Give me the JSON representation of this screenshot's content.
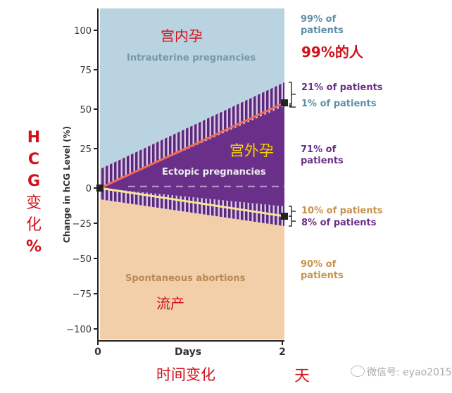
{
  "chart_data": {
    "type": "area",
    "xlabel": "Days",
    "ylabel": "Change in hCG Level (%)",
    "xlim": [
      0,
      2
    ],
    "ylim": [
      -107,
      115
    ],
    "x_ticks": [
      "0",
      "2"
    ],
    "y_ticks": [
      "100",
      "75",
      "50",
      "25",
      "0",
      "−25",
      "−50",
      "−75",
      "−100"
    ],
    "regions": [
      {
        "name": "Intrauterine pregnancies",
        "color": "#b9d3e0"
      },
      {
        "name": "Ectopic pregnancies",
        "color": "#6a3089"
      },
      {
        "name": "Spontaneous abortions",
        "color": "#f3cfa9"
      }
    ],
    "bands": {
      "upper": {
        "day0": [
          0,
          12
        ],
        "day2": [
          52,
          67
        ]
      },
      "lower": {
        "day0": [
          -8,
          0
        ],
        "day2": [
          -27,
          -13
        ]
      }
    },
    "lines": [
      {
        "color": "#f06a5a",
        "x": [
          0,
          2
        ],
        "y": [
          0,
          54
        ]
      },
      {
        "color": "#f6e59a",
        "x": [
          0,
          2
        ],
        "y": [
          0,
          -20
        ]
      }
    ],
    "dashed_reference": 1,
    "annotations": [
      {
        "text": "99% of patients",
        "color": "#5f8fa6"
      },
      {
        "text": "21% of patients",
        "color": "#6a3089"
      },
      {
        "text": "1% of patients",
        "color": "#5f8fa6"
      },
      {
        "text": "71% of patients",
        "color": "#6a3089"
      },
      {
        "text": "10% of patients",
        "color": "#c9924b"
      },
      {
        "text": "8% of patients",
        "color": "#6a3089"
      },
      {
        "text": "90% of patients",
        "color": "#c9924b"
      }
    ]
  },
  "overlay": {
    "intrauterine_cn": "宫内孕",
    "ectopic_cn": "宫外孕",
    "abortion_cn": "流产",
    "patients_99_cn": "99%的人",
    "yaxis_cn": [
      "H",
      "C",
      "G",
      "变",
      "化",
      "%"
    ],
    "days_cn": "天",
    "xaxis_cn": "时间变化"
  },
  "watermark": {
    "text": "微信号: eyao2015",
    "icon": "wechat-icon"
  }
}
